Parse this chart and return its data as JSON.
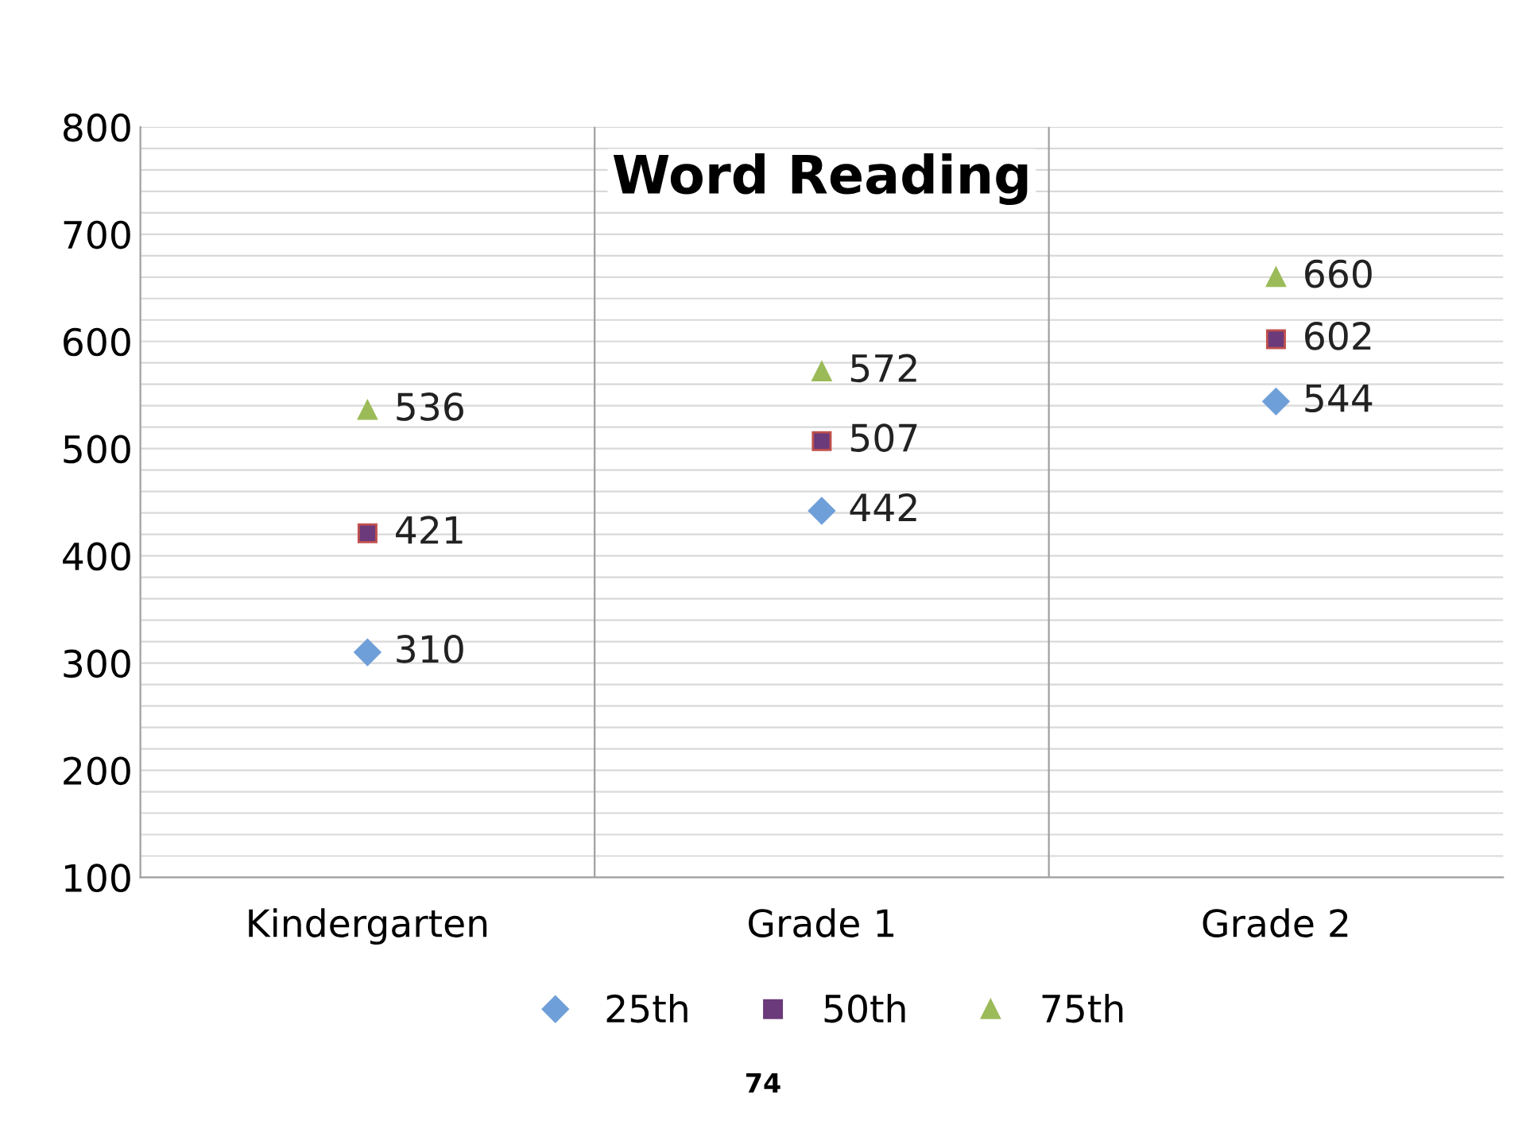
{
  "chart_data": {
    "type": "scatter",
    "title": "Word Reading",
    "categories": [
      "Kindergarten",
      "Grade 1",
      "Grade 2"
    ],
    "series": [
      {
        "name": "25th",
        "color": "#6f9fd8",
        "marker": "diamond",
        "values": [
          310,
          442,
          544
        ]
      },
      {
        "name": "50th",
        "color": "#6b3a7a",
        "marker": "square",
        "values": [
          421,
          507,
          602
        ]
      },
      {
        "name": "75th",
        "color": "#9bbb59",
        "marker": "triangle",
        "values": [
          536,
          572,
          660
        ]
      }
    ],
    "ylim": [
      100,
      800
    ],
    "yticks": [
      100,
      {
        "value": 120,
        "label": null
      },
      {
        "value": 140,
        "label": null
      },
      {
        "value": 160,
        "label": null
      },
      {
        "value": 180,
        "label": null
      },
      200,
      {
        "value": 220,
        "label": null
      },
      {
        "value": 240,
        "label": null
      },
      {
        "value": 260,
        "label": null
      },
      {
        "value": 280,
        "label": null
      },
      300,
      {
        "value": 320,
        "label": null
      },
      {
        "value": 340,
        "label": null
      },
      {
        "value": 360,
        "label": null
      },
      {
        "value": 380,
        "label": null
      },
      400,
      {
        "value": 420,
        "label": null
      },
      {
        "value": 440,
        "label": null
      },
      {
        "value": 460,
        "label": null
      },
      {
        "value": 480,
        "label": null
      },
      500,
      {
        "value": 520,
        "label": null
      },
      {
        "value": 540,
        "label": null
      },
      {
        "value": 560,
        "label": null
      },
      {
        "value": 580,
        "label": null
      },
      600,
      {
        "value": 620,
        "label": null
      },
      {
        "value": 640,
        "label": null
      },
      {
        "value": 660,
        "label": null
      },
      {
        "value": 680,
        "label": null
      },
      700,
      {
        "value": 720,
        "label": null
      },
      {
        "value": 740,
        "label": null
      },
      {
        "value": 760,
        "label": null
      },
      {
        "value": 780,
        "label": null
      },
      800
    ],
    "grid": true,
    "legend": "bottom",
    "data_labels": true,
    "annotations": [
      "74"
    ]
  }
}
